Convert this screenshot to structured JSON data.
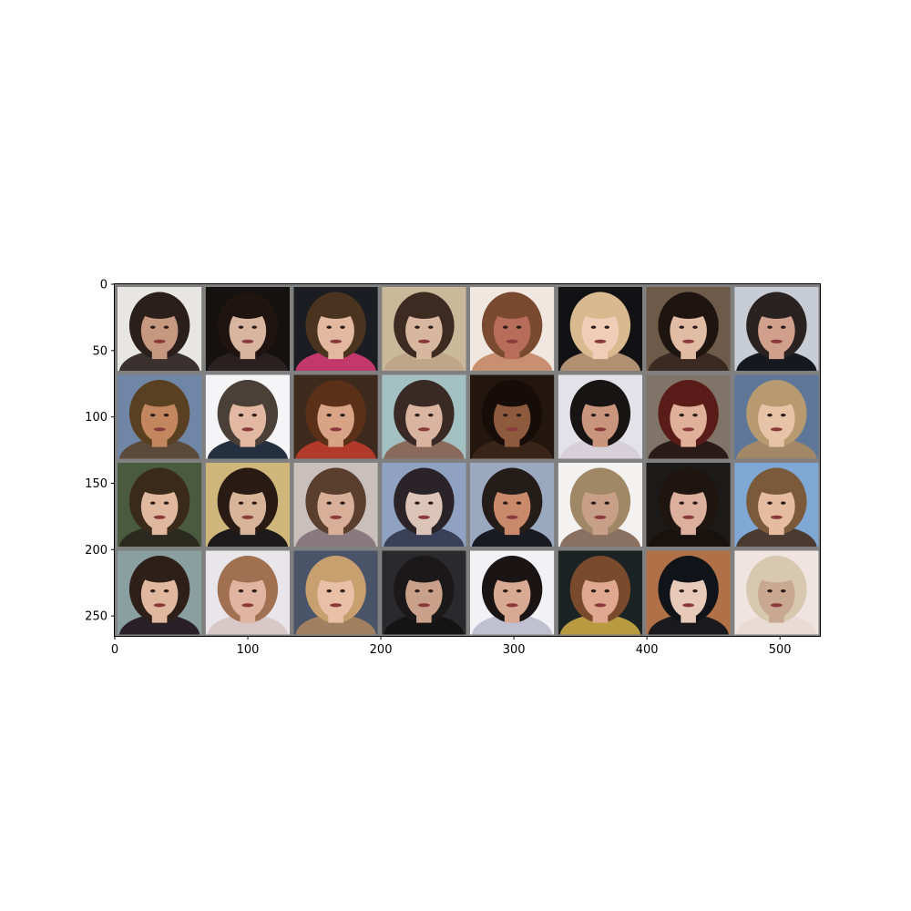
{
  "figure": {
    "background": "#ffffff",
    "grid_border_color": "#808080",
    "image": {
      "rows": 4,
      "cols": 8,
      "content": "generated face portraits"
    },
    "axes": {
      "x_range": [
        0,
        530
      ],
      "y_range": [
        265,
        0
      ],
      "x_ticks": [
        0,
        100,
        200,
        300,
        400,
        500
      ],
      "y_ticks": [
        0,
        50,
        100,
        150,
        200,
        250
      ],
      "x_tick_labels": [
        "0",
        "100",
        "200",
        "300",
        "400",
        "500"
      ],
      "y_tick_labels": [
        "0",
        "50",
        "100",
        "150",
        "200",
        "250"
      ]
    },
    "tiles": [
      {
        "bg": "#e8e6e2",
        "hair": "#2a1f1a",
        "skin": "#c79880",
        "shirt": "#3a3030"
      },
      {
        "bg": "#151110",
        "hair": "#1f1410",
        "skin": "#d7b59f",
        "shirt": "#2a2020"
      },
      {
        "bg": "#1b1d22",
        "hair": "#4a3420",
        "skin": "#e2b9a0",
        "shirt": "#c2386b"
      },
      {
        "bg": "#c9b89a",
        "hair": "#3d2b22",
        "skin": "#d8b7a0",
        "shirt": "#bfa58a"
      },
      {
        "bg": "#f0e8e0",
        "hair": "#7a4a30",
        "skin": "#b86c5a",
        "shirt": "#c89070"
      },
      {
        "bg": "#121214",
        "hair": "#d9b98f",
        "skin": "#f0cdb6",
        "shirt": "#b09070"
      },
      {
        "bg": "#6e5a48",
        "hair": "#1e1410",
        "skin": "#e0bca4",
        "shirt": "#3b2a22"
      },
      {
        "bg": "#c8ccd4",
        "hair": "#2a2220",
        "skin": "#d0a08c",
        "shirt": "#15181f"
      },
      {
        "bg": "#6f86a7",
        "hair": "#5a4022",
        "skin": "#c2875f",
        "shirt": "#5b4a3a"
      },
      {
        "bg": "#f5f5f7",
        "hair": "#4a4038",
        "skin": "#e2b8a2",
        "shirt": "#243040"
      },
      {
        "bg": "#3e2a1c",
        "hair": "#5a3018",
        "skin": "#d9a386",
        "shirt": "#b23a2a"
      },
      {
        "bg": "#a3c0c2",
        "hair": "#3a2a26",
        "skin": "#d9b4a0",
        "shirt": "#8a6a5a"
      },
      {
        "bg": "#22160f",
        "hair": "#160d08",
        "skin": "#8e5a3e",
        "shirt": "#3a2418"
      },
      {
        "bg": "#e2e2e8",
        "hair": "#181414",
        "skin": "#c9957c",
        "shirt": "#d8d0d8"
      },
      {
        "bg": "#807468",
        "hair": "#5a1c18",
        "skin": "#e0b09a",
        "shirt": "#2a1a18"
      },
      {
        "bg": "#5e7798",
        "hair": "#b89a70",
        "skin": "#e7c4a8",
        "shirt": "#a28866"
      },
      {
        "bg": "#4a5a3e",
        "hair": "#3a2a1a",
        "skin": "#e0b8a0",
        "shirt": "#2a2a20"
      },
      {
        "bg": "#cfb67a",
        "hair": "#2a1a14",
        "skin": "#d8b49a",
        "shirt": "#1c1a1a"
      },
      {
        "bg": "#c9c0bc",
        "hair": "#5a3e2e",
        "skin": "#d8b09a",
        "shirt": "#8a7a80"
      },
      {
        "bg": "#8fa2c2",
        "hair": "#2a2428",
        "skin": "#dcc4b8",
        "shirt": "#3a4058"
      },
      {
        "bg": "#9aa8c0",
        "hair": "#241c18",
        "skin": "#c98a6c",
        "shirt": "#1a1a22"
      },
      {
        "bg": "#f4f2f0",
        "hair": "#a08866",
        "skin": "#c8a08a",
        "shirt": "#8a7060"
      },
      {
        "bg": "#1c1a18",
        "hair": "#1e1410",
        "skin": "#dcb09c",
        "shirt": "#18120e"
      },
      {
        "bg": "#7fa8d4",
        "hair": "#7a5a3a",
        "skin": "#e6bca0",
        "shirt": "#4a3a30"
      },
      {
        "bg": "#8aa0a0",
        "hair": "#2e2018",
        "skin": "#e0b8a0",
        "shirt": "#2a2028"
      },
      {
        "bg": "#e8e6ea",
        "hair": "#a07050",
        "skin": "#e0b4a0",
        "shirt": "#d8c8c8"
      },
      {
        "bg": "#4a5468",
        "hair": "#c8a070",
        "skin": "#e8c0a8",
        "shirt": "#a08060"
      },
      {
        "bg": "#2a2a2e",
        "hair": "#1a1818",
        "skin": "#c9a08a",
        "shirt": "#141414"
      },
      {
        "bg": "#f2f2f6",
        "hair": "#1a1414",
        "skin": "#d8aa94",
        "shirt": "#c0c0d0"
      },
      {
        "bg": "#1a2224",
        "hair": "#7a4a2c",
        "skin": "#e0a890",
        "shirt": "#b89a40"
      },
      {
        "bg": "#b07048",
        "hair": "#101418",
        "skin": "#e8cab8",
        "shirt": "#1a1a1e"
      },
      {
        "bg": "#f0e4e0",
        "hair": "#d8c8b0",
        "skin": "#c8a890",
        "shirt": "#e8dcd4"
      }
    ]
  }
}
